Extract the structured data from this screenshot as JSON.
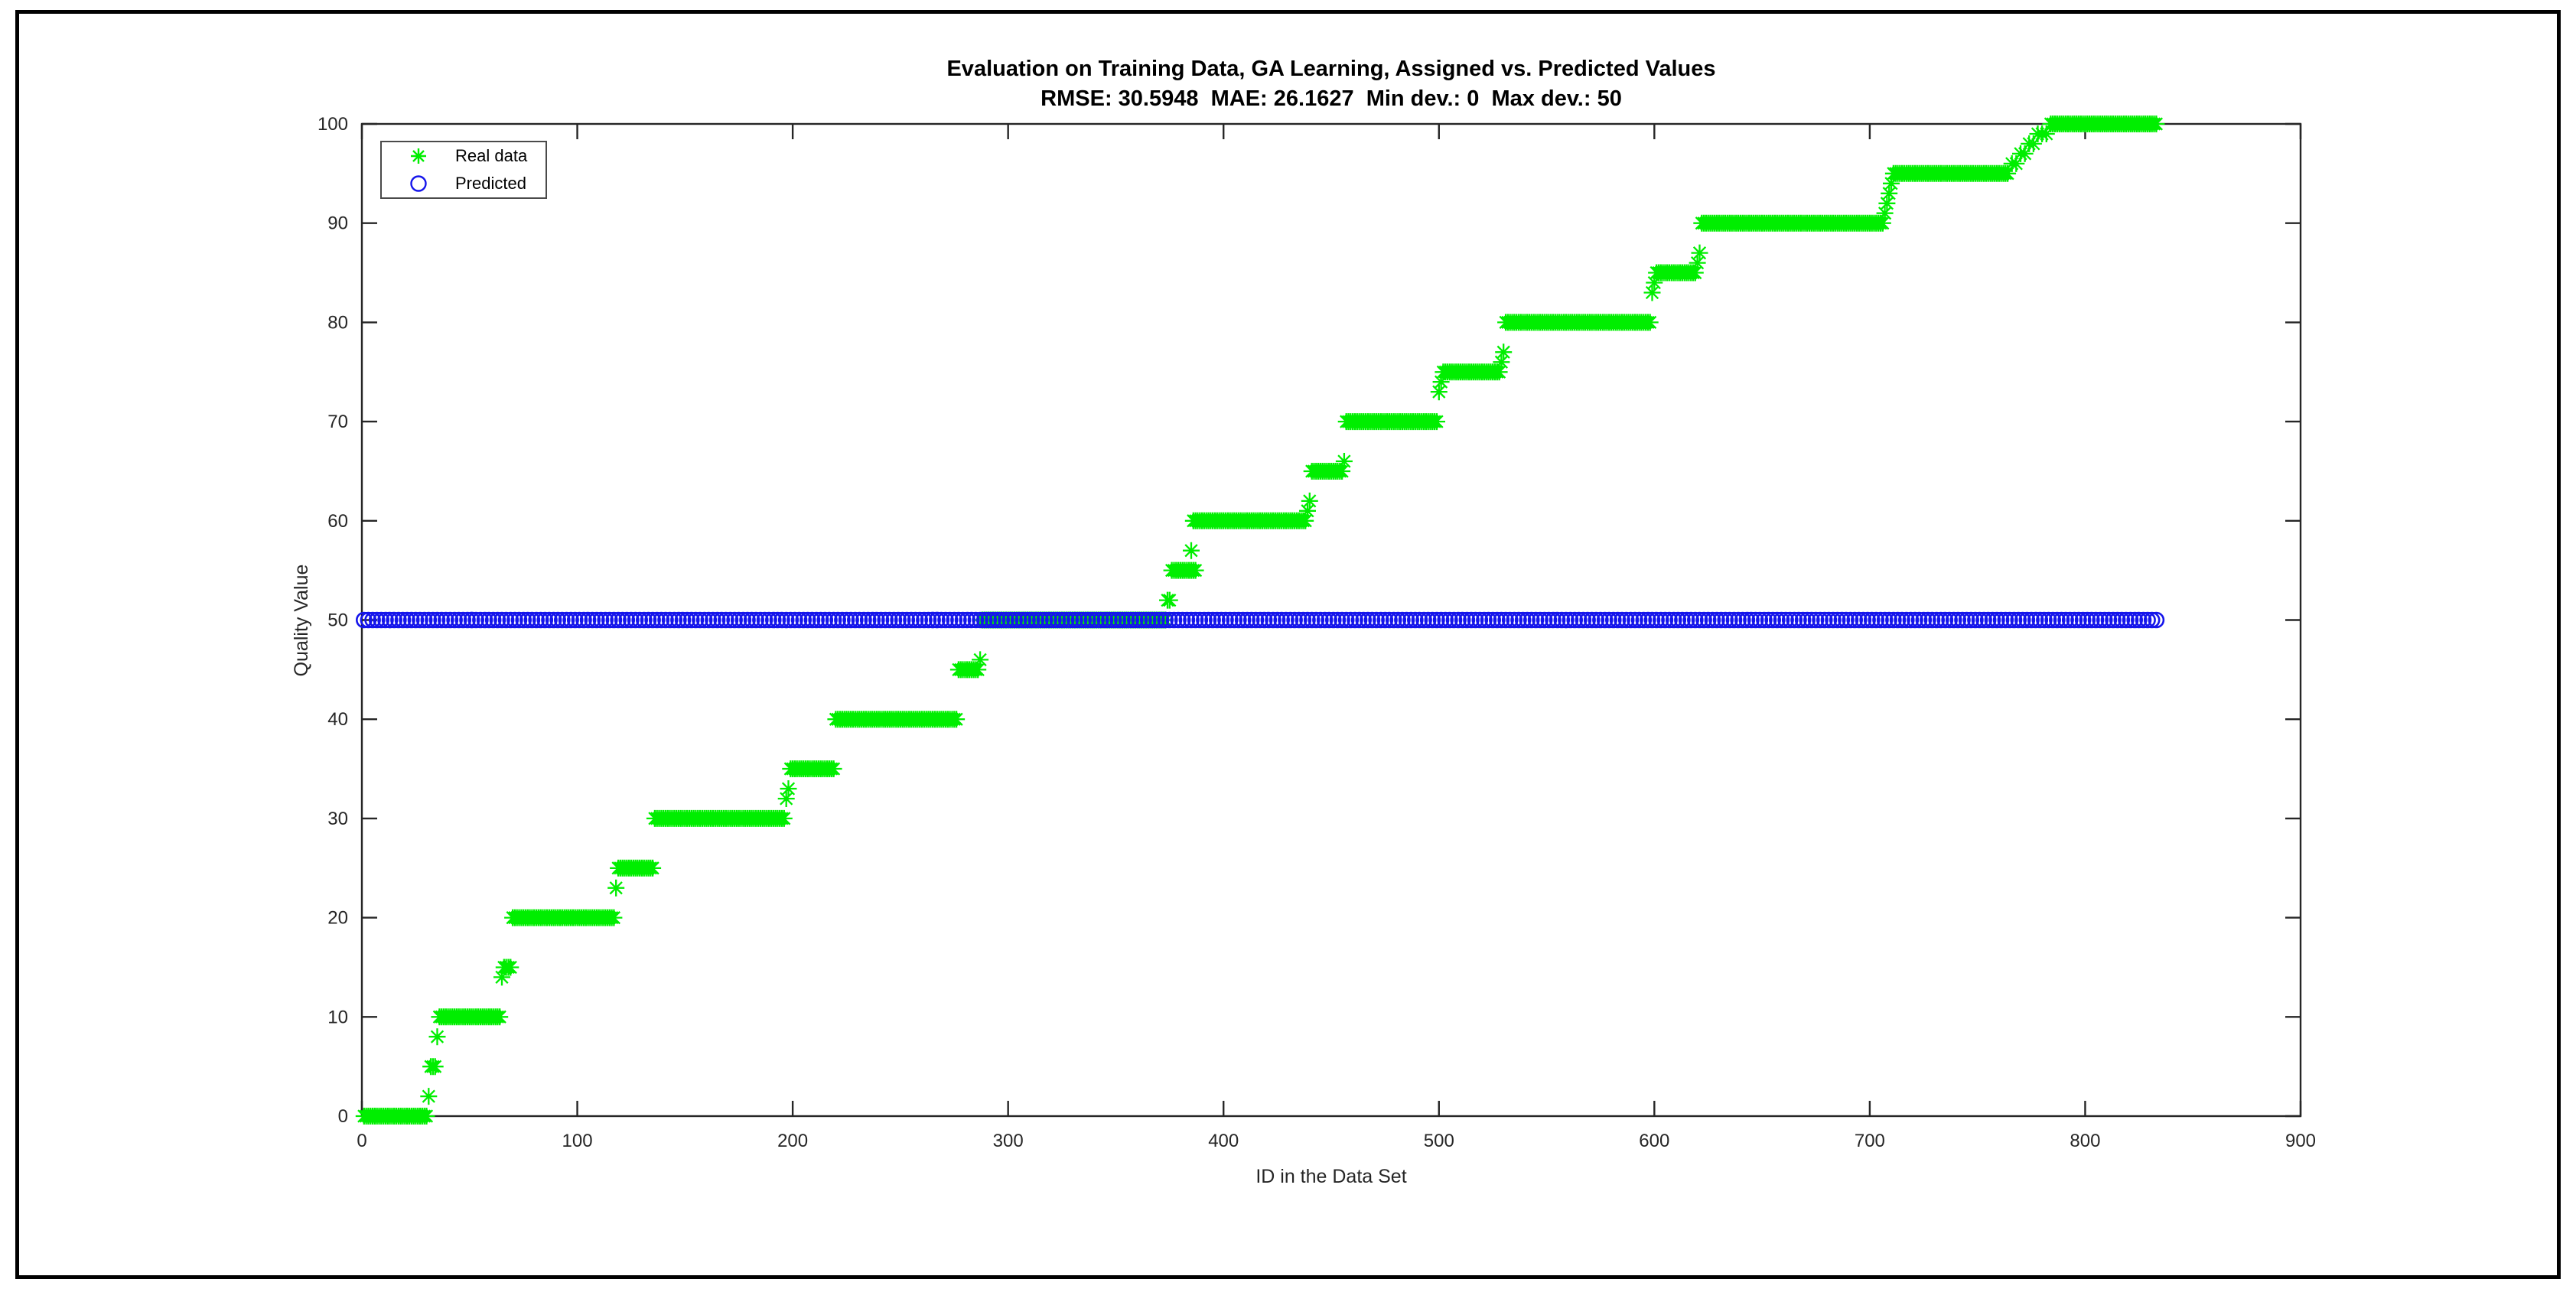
{
  "figure": {
    "title": "Evaluation on Training Data, GA Learning, Assigned vs. Predicted Values",
    "subtitle": "RMSE: 30.5948  MAE: 26.1627  Min dev.: 0  Max dev.: 50"
  },
  "axes": {
    "xlabel": "ID in the Data Set",
    "ylabel": "Quality Value"
  },
  "legend": {
    "items": [
      {
        "label": "Real data",
        "marker": "asterisk-icon",
        "color": "#00EE00"
      },
      {
        "label": "Predicted",
        "marker": "circle-icon",
        "color": "#1515EB"
      }
    ]
  },
  "colors": {
    "real_data": "#00EE00",
    "predicted": "#1515EB",
    "axis": "#262626",
    "text": "#000000",
    "background": "#ffffff"
  },
  "chart_data": {
    "type": "scatter",
    "title": "Evaluation on Training Data, GA Learning, Assigned vs. Predicted Values",
    "subtitle": "RMSE: 30.5948  MAE: 26.1627  Min dev.: 0  Max dev.: 50",
    "xlabel": "ID in the Data Set",
    "ylabel": "Quality Value",
    "xlim": [
      0,
      900
    ],
    "ylim": [
      0,
      100
    ],
    "xticks": [
      0,
      100,
      200,
      300,
      400,
      500,
      600,
      700,
      800,
      900
    ],
    "yticks": [
      0,
      10,
      20,
      30,
      40,
      50,
      60,
      70,
      80,
      90,
      100
    ],
    "grid": false,
    "legend_position": "top-left-inside",
    "n_points": 833,
    "stats": {
      "rmse": 30.5948,
      "mae": 26.1627,
      "min_dev": 0,
      "max_dev": 50
    },
    "series": [
      {
        "name": "Real data",
        "marker": "asterisk",
        "color": "#00EE00",
        "segments": [
          {
            "from": 1,
            "to": 30,
            "value": 0
          },
          {
            "from": 36,
            "to": 64,
            "value": 10
          },
          {
            "from": 70,
            "to": 117,
            "value": 20
          },
          {
            "from": 119,
            "to": 135,
            "value": 25
          },
          {
            "from": 136,
            "to": 196,
            "value": 30
          },
          {
            "from": 199,
            "to": 219,
            "value": 35
          },
          {
            "from": 220,
            "to": 276,
            "value": 40
          },
          {
            "from": 277,
            "to": 286,
            "value": 45
          },
          {
            "from": 288,
            "to": 373,
            "value": 50
          },
          {
            "from": 376,
            "to": 387,
            "value": 55
          },
          {
            "from": 386,
            "to": 438,
            "value": 60
          },
          {
            "from": 441,
            "to": 455,
            "value": 65
          },
          {
            "from": 457,
            "to": 499,
            "value": 70
          },
          {
            "from": 502,
            "to": 528,
            "value": 75
          },
          {
            "from": 531,
            "to": 598,
            "value": 80
          },
          {
            "from": 601,
            "to": 619,
            "value": 85
          },
          {
            "from": 622,
            "to": 706,
            "value": 90
          },
          {
            "from": 711,
            "to": 764,
            "value": 95
          },
          {
            "from": 784,
            "to": 833,
            "value": 100
          }
        ],
        "points": [
          {
            "id": 31,
            "value": 2
          },
          {
            "id": 32,
            "value": 5
          },
          {
            "id": 33,
            "value": 5
          },
          {
            "id": 34,
            "value": 5
          },
          {
            "id": 35,
            "value": 8
          },
          {
            "id": 65,
            "value": 14
          },
          {
            "id": 66,
            "value": 15
          },
          {
            "id": 67,
            "value": 15
          },
          {
            "id": 68,
            "value": 15
          },
          {
            "id": 69,
            "value": 15
          },
          {
            "id": 118,
            "value": 23
          },
          {
            "id": 197,
            "value": 32
          },
          {
            "id": 198,
            "value": 33
          },
          {
            "id": 287,
            "value": 46
          },
          {
            "id": 374,
            "value": 52
          },
          {
            "id": 375,
            "value": 52
          },
          {
            "id": 385,
            "value": 57
          },
          {
            "id": 439,
            "value": 61
          },
          {
            "id": 440,
            "value": 62
          },
          {
            "id": 456,
            "value": 66
          },
          {
            "id": 500,
            "value": 73
          },
          {
            "id": 501,
            "value": 74
          },
          {
            "id": 529,
            "value": 76
          },
          {
            "id": 530,
            "value": 77
          },
          {
            "id": 599,
            "value": 83
          },
          {
            "id": 600,
            "value": 84
          },
          {
            "id": 620,
            "value": 86
          },
          {
            "id": 621,
            "value": 87
          },
          {
            "id": 707,
            "value": 91
          },
          {
            "id": 708,
            "value": 92
          },
          {
            "id": 709,
            "value": 93
          },
          {
            "id": 710,
            "value": 94
          },
          {
            "id": 766,
            "value": 96
          },
          {
            "id": 768,
            "value": 96
          },
          {
            "id": 770,
            "value": 97
          },
          {
            "id": 772,
            "value": 97
          },
          {
            "id": 774,
            "value": 98
          },
          {
            "id": 776,
            "value": 98
          },
          {
            "id": 778,
            "value": 99
          },
          {
            "id": 780,
            "value": 99
          },
          {
            "id": 782,
            "value": 99
          }
        ]
      },
      {
        "name": "Predicted",
        "marker": "circle",
        "color": "#1515EB",
        "line": {
          "from_id": 1,
          "to_id": 833,
          "value": 50
        }
      }
    ]
  }
}
